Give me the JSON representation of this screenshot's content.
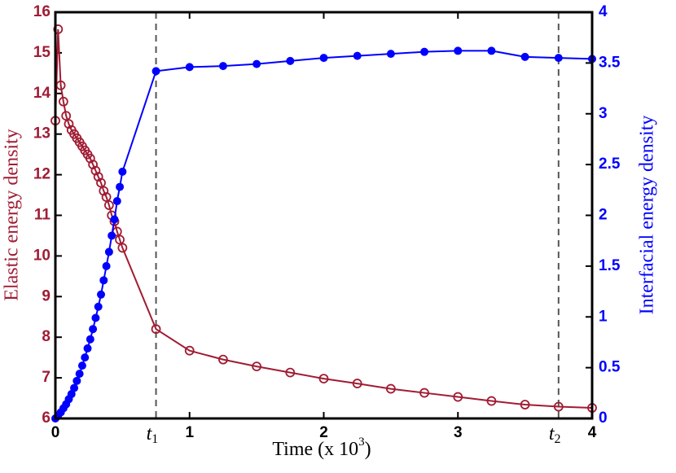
{
  "chart_data": {
    "type": "line",
    "xlabel": "Time (x 10",
    "xlabel_sup": "3",
    "xlabel_end": ")",
    "ylabel": "Elastic energy density",
    "y2label": "Interfacial energy density",
    "x": [
      0,
      0.02,
      0.04,
      0.06,
      0.08,
      0.1,
      0.12,
      0.14,
      0.16,
      0.18,
      0.2,
      0.22,
      0.24,
      0.26,
      0.28,
      0.3,
      0.32,
      0.34,
      0.36,
      0.38,
      0.4,
      0.42,
      0.44,
      0.46,
      0.48,
      0.5,
      0.75,
      1,
      1.25,
      1.5,
      1.75,
      2,
      2.25,
      2.5,
      2.75,
      3,
      3.25,
      3.5,
      3.75,
      4
    ],
    "series": [
      {
        "name": "Elastic energy density",
        "color": "#a01c33",
        "marker": "open",
        "axis": "y",
        "values": [
          13.33,
          15.58,
          14.2,
          13.8,
          13.45,
          13.25,
          13.1,
          13.0,
          12.9,
          12.8,
          12.7,
          12.6,
          12.5,
          12.4,
          12.25,
          12.1,
          11.95,
          11.8,
          11.6,
          11.45,
          11.25,
          11.0,
          10.85,
          10.6,
          10.4,
          10.2,
          8.2,
          7.67,
          7.45,
          7.28,
          7.13,
          6.98,
          6.86,
          6.73,
          6.63,
          6.53,
          6.43,
          6.34,
          6.29,
          6.26
        ]
      },
      {
        "name": "Interfacial energy density",
        "color": "#0000ff",
        "marker": "filled",
        "axis": "y2",
        "values": [
          0,
          0.03,
          0.06,
          0.1,
          0.14,
          0.19,
          0.24,
          0.3,
          0.37,
          0.44,
          0.52,
          0.6,
          0.69,
          0.78,
          0.88,
          0.99,
          1.1,
          1.22,
          1.36,
          1.5,
          1.64,
          1.8,
          1.96,
          2.14,
          2.28,
          2.43,
          3.42,
          3.46,
          3.47,
          3.49,
          3.52,
          3.55,
          3.57,
          3.59,
          3.61,
          3.62,
          3.62,
          3.56,
          3.55,
          3.54
        ]
      }
    ],
    "xlim": [
      0,
      4
    ],
    "xticks": [
      0,
      1,
      2,
      3,
      4
    ],
    "ylim": [
      6,
      16
    ],
    "yticks": [
      6,
      7,
      8,
      9,
      10,
      11,
      12,
      13,
      14,
      15,
      16
    ],
    "y2lim": [
      0,
      4
    ],
    "y2ticks": [
      0,
      0.5,
      1,
      1.5,
      2,
      2.5,
      3,
      3.5,
      4
    ],
    "annotations": [
      {
        "label": "t",
        "sub": "1",
        "x": 0.75
      },
      {
        "label": "t",
        "sub": "2",
        "x": 3.75
      }
    ]
  }
}
